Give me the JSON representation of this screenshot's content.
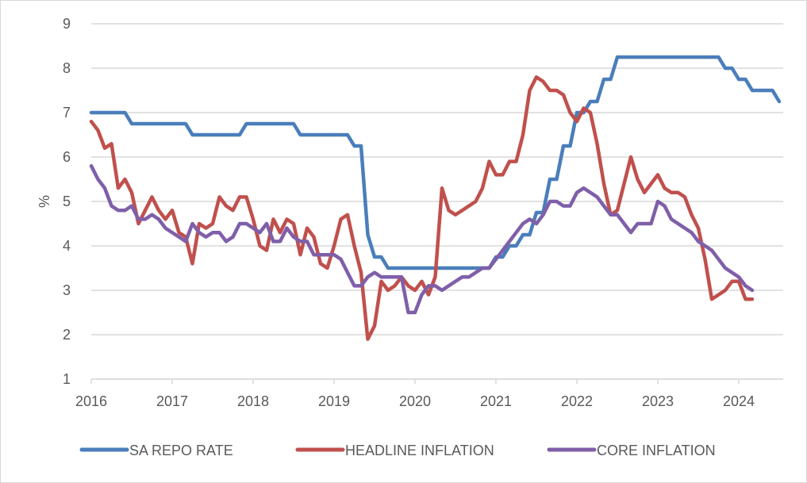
{
  "chart_data": {
    "type": "line",
    "title": "",
    "xlabel": "",
    "ylabel": "%",
    "ylim": [
      1,
      9
    ],
    "yticks": [
      "1",
      "2",
      "3",
      "4",
      "5",
      "6",
      "7",
      "8",
      "9"
    ],
    "xticks": [
      "2016",
      "2017",
      "2018",
      "2019",
      "2020",
      "2021",
      "2022",
      "2023",
      "2024"
    ],
    "xlim_years": [
      2016.0,
      2024.55
    ],
    "grid": "horizontal",
    "legend_position": "bottom",
    "frequency": "monthly",
    "start": "2016-01",
    "series": [
      {
        "name": "SA REPO RATE",
        "color": "#4a7ebb",
        "values": [
          7.0,
          7.0,
          7.0,
          7.0,
          7.0,
          7.0,
          6.75,
          6.75,
          6.75,
          6.75,
          6.75,
          6.75,
          6.75,
          6.75,
          6.75,
          6.5,
          6.5,
          6.5,
          6.5,
          6.5,
          6.5,
          6.5,
          6.5,
          6.75,
          6.75,
          6.75,
          6.75,
          6.75,
          6.75,
          6.75,
          6.75,
          6.5,
          6.5,
          6.5,
          6.5,
          6.5,
          6.5,
          6.5,
          6.5,
          6.25,
          6.25,
          4.25,
          3.75,
          3.75,
          3.5,
          3.5,
          3.5,
          3.5,
          3.5,
          3.5,
          3.5,
          3.5,
          3.5,
          3.5,
          3.5,
          3.5,
          3.5,
          3.5,
          3.5,
          3.5,
          3.75,
          3.75,
          4.0,
          4.0,
          4.25,
          4.25,
          4.75,
          4.75,
          5.5,
          5.5,
          6.25,
          6.25,
          7.0,
          7.0,
          7.25,
          7.25,
          7.75,
          7.75,
          8.25,
          8.25,
          8.25,
          8.25,
          8.25,
          8.25,
          8.25,
          8.25,
          8.25,
          8.25,
          8.25,
          8.25,
          8.25,
          8.25,
          8.25,
          8.25,
          8.0,
          8.0,
          7.75,
          7.75,
          7.5,
          7.5,
          7.5,
          7.5,
          7.25
        ]
      },
      {
        "name": "HEADLINE INFLATION",
        "color": "#c0504d",
        "values": [
          6.8,
          6.6,
          6.2,
          6.3,
          5.3,
          5.5,
          5.2,
          4.5,
          4.8,
          5.1,
          4.8,
          4.6,
          4.8,
          4.3,
          4.2,
          3.6,
          4.5,
          4.4,
          4.5,
          5.1,
          4.9,
          4.8,
          5.1,
          5.1,
          4.6,
          4.0,
          3.9,
          4.6,
          4.3,
          4.6,
          4.5,
          3.8,
          4.4,
          4.2,
          3.6,
          3.5,
          4.0,
          4.6,
          4.7,
          4.0,
          3.4,
          1.9,
          2.2,
          3.2,
          3.0,
          3.1,
          3.3,
          3.1,
          3.0,
          3.2,
          2.9,
          3.3,
          5.3,
          4.8,
          4.7,
          4.8,
          4.9,
          5.0,
          5.3,
          5.9,
          5.6,
          5.6,
          5.9,
          5.9,
          6.5,
          7.5,
          7.8,
          7.7,
          7.5,
          7.5,
          7.4,
          7.0,
          6.8,
          7.1,
          7.0,
          6.3,
          5.4,
          4.7,
          4.8,
          5.4,
          6.0,
          5.5,
          5.2,
          5.4,
          5.6,
          5.3,
          5.2,
          5.2,
          5.1,
          4.7,
          4.4,
          3.7,
          2.8,
          2.9,
          3.0,
          3.2,
          3.2,
          2.8,
          2.8
        ]
      },
      {
        "name": "CORE INFLATION",
        "color": "#7f5fa9",
        "values": [
          5.8,
          5.5,
          5.3,
          4.9,
          4.8,
          4.8,
          4.9,
          4.6,
          4.6,
          4.7,
          4.6,
          4.4,
          4.3,
          4.2,
          4.1,
          4.5,
          4.3,
          4.2,
          4.3,
          4.3,
          4.1,
          4.2,
          4.5,
          4.5,
          4.4,
          4.3,
          4.5,
          4.1,
          4.1,
          4.4,
          4.2,
          4.1,
          4.1,
          3.8,
          3.8,
          3.8,
          3.8,
          3.7,
          3.4,
          3.1,
          3.1,
          3.3,
          3.4,
          3.3,
          3.3,
          3.3,
          3.3,
          2.5,
          2.5,
          2.9,
          3.1,
          3.1,
          3.0,
          3.1,
          3.2,
          3.3,
          3.3,
          3.4,
          3.5,
          3.5,
          3.7,
          3.9,
          4.1,
          4.3,
          4.5,
          4.6,
          4.5,
          4.7,
          5.0,
          5.0,
          4.9,
          4.9,
          5.2,
          5.3,
          5.2,
          5.1,
          4.9,
          4.7,
          4.7,
          4.5,
          4.3,
          4.5,
          4.5,
          4.5,
          5.0,
          4.9,
          4.6,
          4.5,
          4.4,
          4.3,
          4.1,
          4.0,
          3.9,
          3.7,
          3.5,
          3.4,
          3.3,
          3.1,
          3.0
        ]
      }
    ]
  }
}
